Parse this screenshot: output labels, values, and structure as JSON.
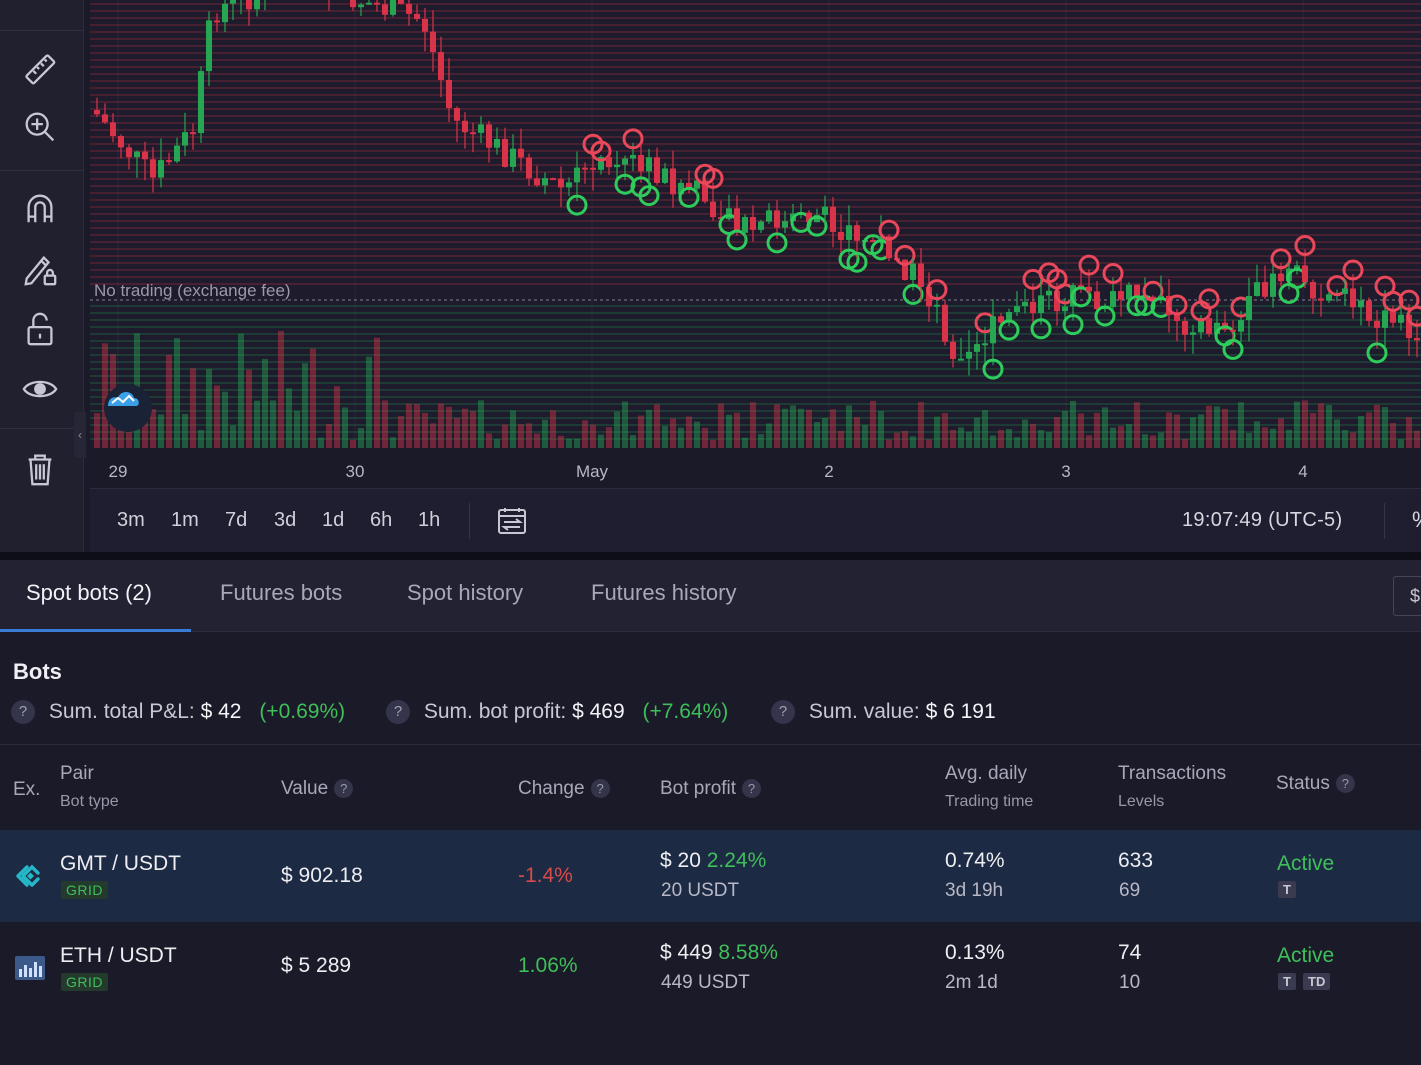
{
  "chart": {
    "no_trading_label": "No trading (exchange fee)",
    "x_ticks": [
      "29",
      "30",
      "May",
      "2",
      "3",
      "4"
    ]
  },
  "range_buttons": [
    "3m",
    "1m",
    "7d",
    "3d",
    "1d",
    "6h",
    "1h"
  ],
  "clock": "19:07:49 (UTC-5)",
  "toolbar_icons": [
    "ruler-icon",
    "zoom-in-icon",
    "magnet-icon",
    "pencil-lock-icon",
    "unlock-icon",
    "eye-icon",
    "trash-icon"
  ],
  "tabs": [
    {
      "label": "Spot bots (2)",
      "active": true
    },
    {
      "label": "Futures bots",
      "active": false
    },
    {
      "label": "Spot history",
      "active": false
    },
    {
      "label": "Futures history",
      "active": false
    }
  ],
  "currency_symbol": "$",
  "bots": {
    "title": "Bots",
    "summary": {
      "pnl_label": "Sum. total P&L:",
      "pnl_value": "$ 42",
      "pnl_pct": "(+0.69%)",
      "profit_label": "Sum. bot profit:",
      "profit_value": "$ 469",
      "profit_pct": "(+7.64%)",
      "value_label": "Sum. value:",
      "value_value": "$ 6 191",
      "help": "?"
    },
    "columns": {
      "ex": "Ex.",
      "pair": "Pair",
      "bot_type": "Bot type",
      "value": "Value",
      "change": "Change",
      "bot_profit": "Bot profit",
      "avg_daily": "Avg. daily",
      "trading_time": "Trading time",
      "transactions": "Transactions",
      "levels": "Levels",
      "status": "Status"
    },
    "rows": [
      {
        "exchange_icon": "kucoin-logo-icon",
        "pair": "GMT / USDT",
        "type": "GRID",
        "value": "$ 902.18",
        "change": "-1.4%",
        "profit": "$ 20",
        "profit_pct": "2.24%",
        "profit_sub": "20 USDT",
        "avg_daily": "0.74%",
        "trading_time": "3d 19h",
        "transactions": "633",
        "levels": "69",
        "status": "Active",
        "tags": [
          "T"
        ]
      },
      {
        "exchange_icon": "chart-exchange-icon",
        "pair": "ETH / USDT",
        "type": "GRID",
        "value": "$ 5 289",
        "change": "1.06%",
        "profit": "$ 449",
        "profit_pct": "8.58%",
        "profit_sub": "449 USDT",
        "avg_daily": "0.13%",
        "trading_time": "2m 1d",
        "transactions": "74",
        "levels": "10",
        "status": "Active",
        "tags": [
          "T",
          "TD"
        ]
      }
    ]
  },
  "colors": {
    "up": "#26a653",
    "down": "#d9334a",
    "accent": "#3a7bd5",
    "positive_text": "#3fbf5a",
    "negative_text": "#d94a4a"
  }
}
